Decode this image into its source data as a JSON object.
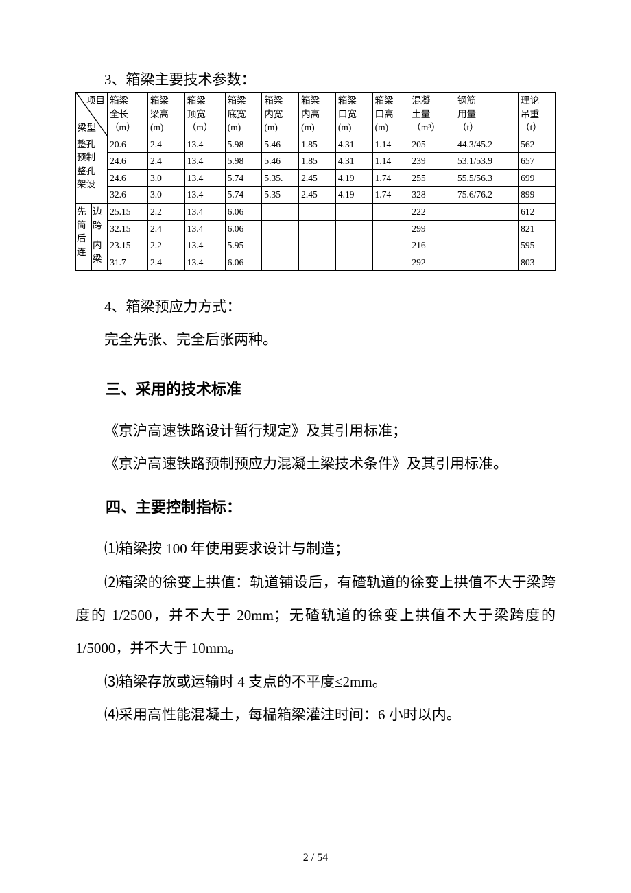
{
  "caption_table": "3、箱梁主要技术参数：",
  "table": {
    "diag_top": "项目",
    "diag_bot": "梁型",
    "columns": [
      "箱梁\n全长\n（m）",
      "箱梁\n梁高\n(m)",
      "箱梁\n顶宽\n（m）",
      "箱梁\n底宽\n(m)",
      "箱梁\n内宽\n(m)",
      "箱梁\n内高\n(m)",
      "箱梁\n口宽\n(m)",
      "箱梁\n口高\n(m)",
      "混凝\n土量\n（m³）",
      "钢筋\n用量\n（t）",
      "理论\n吊重\n（t）"
    ],
    "group1_label": "整孔\n预制\n整孔\n架设",
    "group1_rows": [
      [
        "20.6",
        "2.4",
        "13.4",
        "5.98",
        "5.46",
        "1.85",
        "4.31",
        "1.14",
        "205",
        "44.3/45.2",
        "562"
      ],
      [
        "24.6",
        "2.4",
        "13.4",
        "5.98",
        "5.46",
        "1.85",
        "4.31",
        "1.14",
        "239",
        "53.1/53.9",
        "657"
      ],
      [
        "24.6",
        "3.0",
        "13.4",
        "5.74",
        "5.35.",
        "2.45",
        "4.19",
        "1.74",
        "255",
        "55.5/56.3",
        "699"
      ],
      [
        "32.6",
        "3.0",
        "13.4",
        "5.74",
        "5.35",
        "2.45",
        "4.19",
        "1.74",
        "328",
        "75.6/76.2",
        "899"
      ]
    ],
    "group2_left": "先\n简\n后\n连",
    "group2_sub1": "边\n跨",
    "group2_sub2": "内\n梁",
    "group2_rows": [
      [
        "25.15",
        "2.2",
        "13.4",
        "6.06",
        "",
        "",
        "",
        "",
        "222",
        "",
        "612"
      ],
      [
        "32.15",
        "2.4",
        "13.4",
        "6.06",
        "",
        "",
        "",
        "",
        "299",
        "",
        "821"
      ],
      [
        "23.15",
        "2.2",
        "13.4",
        "5.95",
        "",
        "",
        "",
        "",
        "216",
        "",
        "595"
      ],
      [
        "31.7",
        "2.4",
        "13.4",
        "6.06",
        "",
        "",
        "",
        "",
        "292",
        "",
        "803"
      ]
    ]
  },
  "p_prestress_num": "4、箱梁预应力方式：",
  "p_prestress_body": "完全先张、完全后张两种。",
  "h_standards": "三、采用的技术标准",
  "p_std1": "《京沪高速铁路设计暂行规定》及其引用标准；",
  "p_std2": "《京沪高速铁路预制预应力混凝土梁技术条件》及其引用标准。",
  "h_controls": "四、主要控制指标：",
  "p_c1": "⑴箱梁按 100 年使用要求设计与制造；",
  "p_c2": "⑵箱梁的徐变上拱值：轨道铺设后，有碴轨道的徐变上拱值不大于梁跨度的 1/2500，并不大于 20mm；无碴轨道的徐变上拱值不大于梁跨度的 1/5000，并不大于 10mm。",
  "p_c3": "⑶箱梁存放或运输时 4 支点的不平度≤2mm。",
  "p_c4": "⑷采用高性能混凝土，每榀箱梁灌注时间：6 小时以内。",
  "page_number": "2 / 54",
  "colors": {
    "text": "#000000",
    "bg": "#ffffff",
    "border": "#000000"
  }
}
